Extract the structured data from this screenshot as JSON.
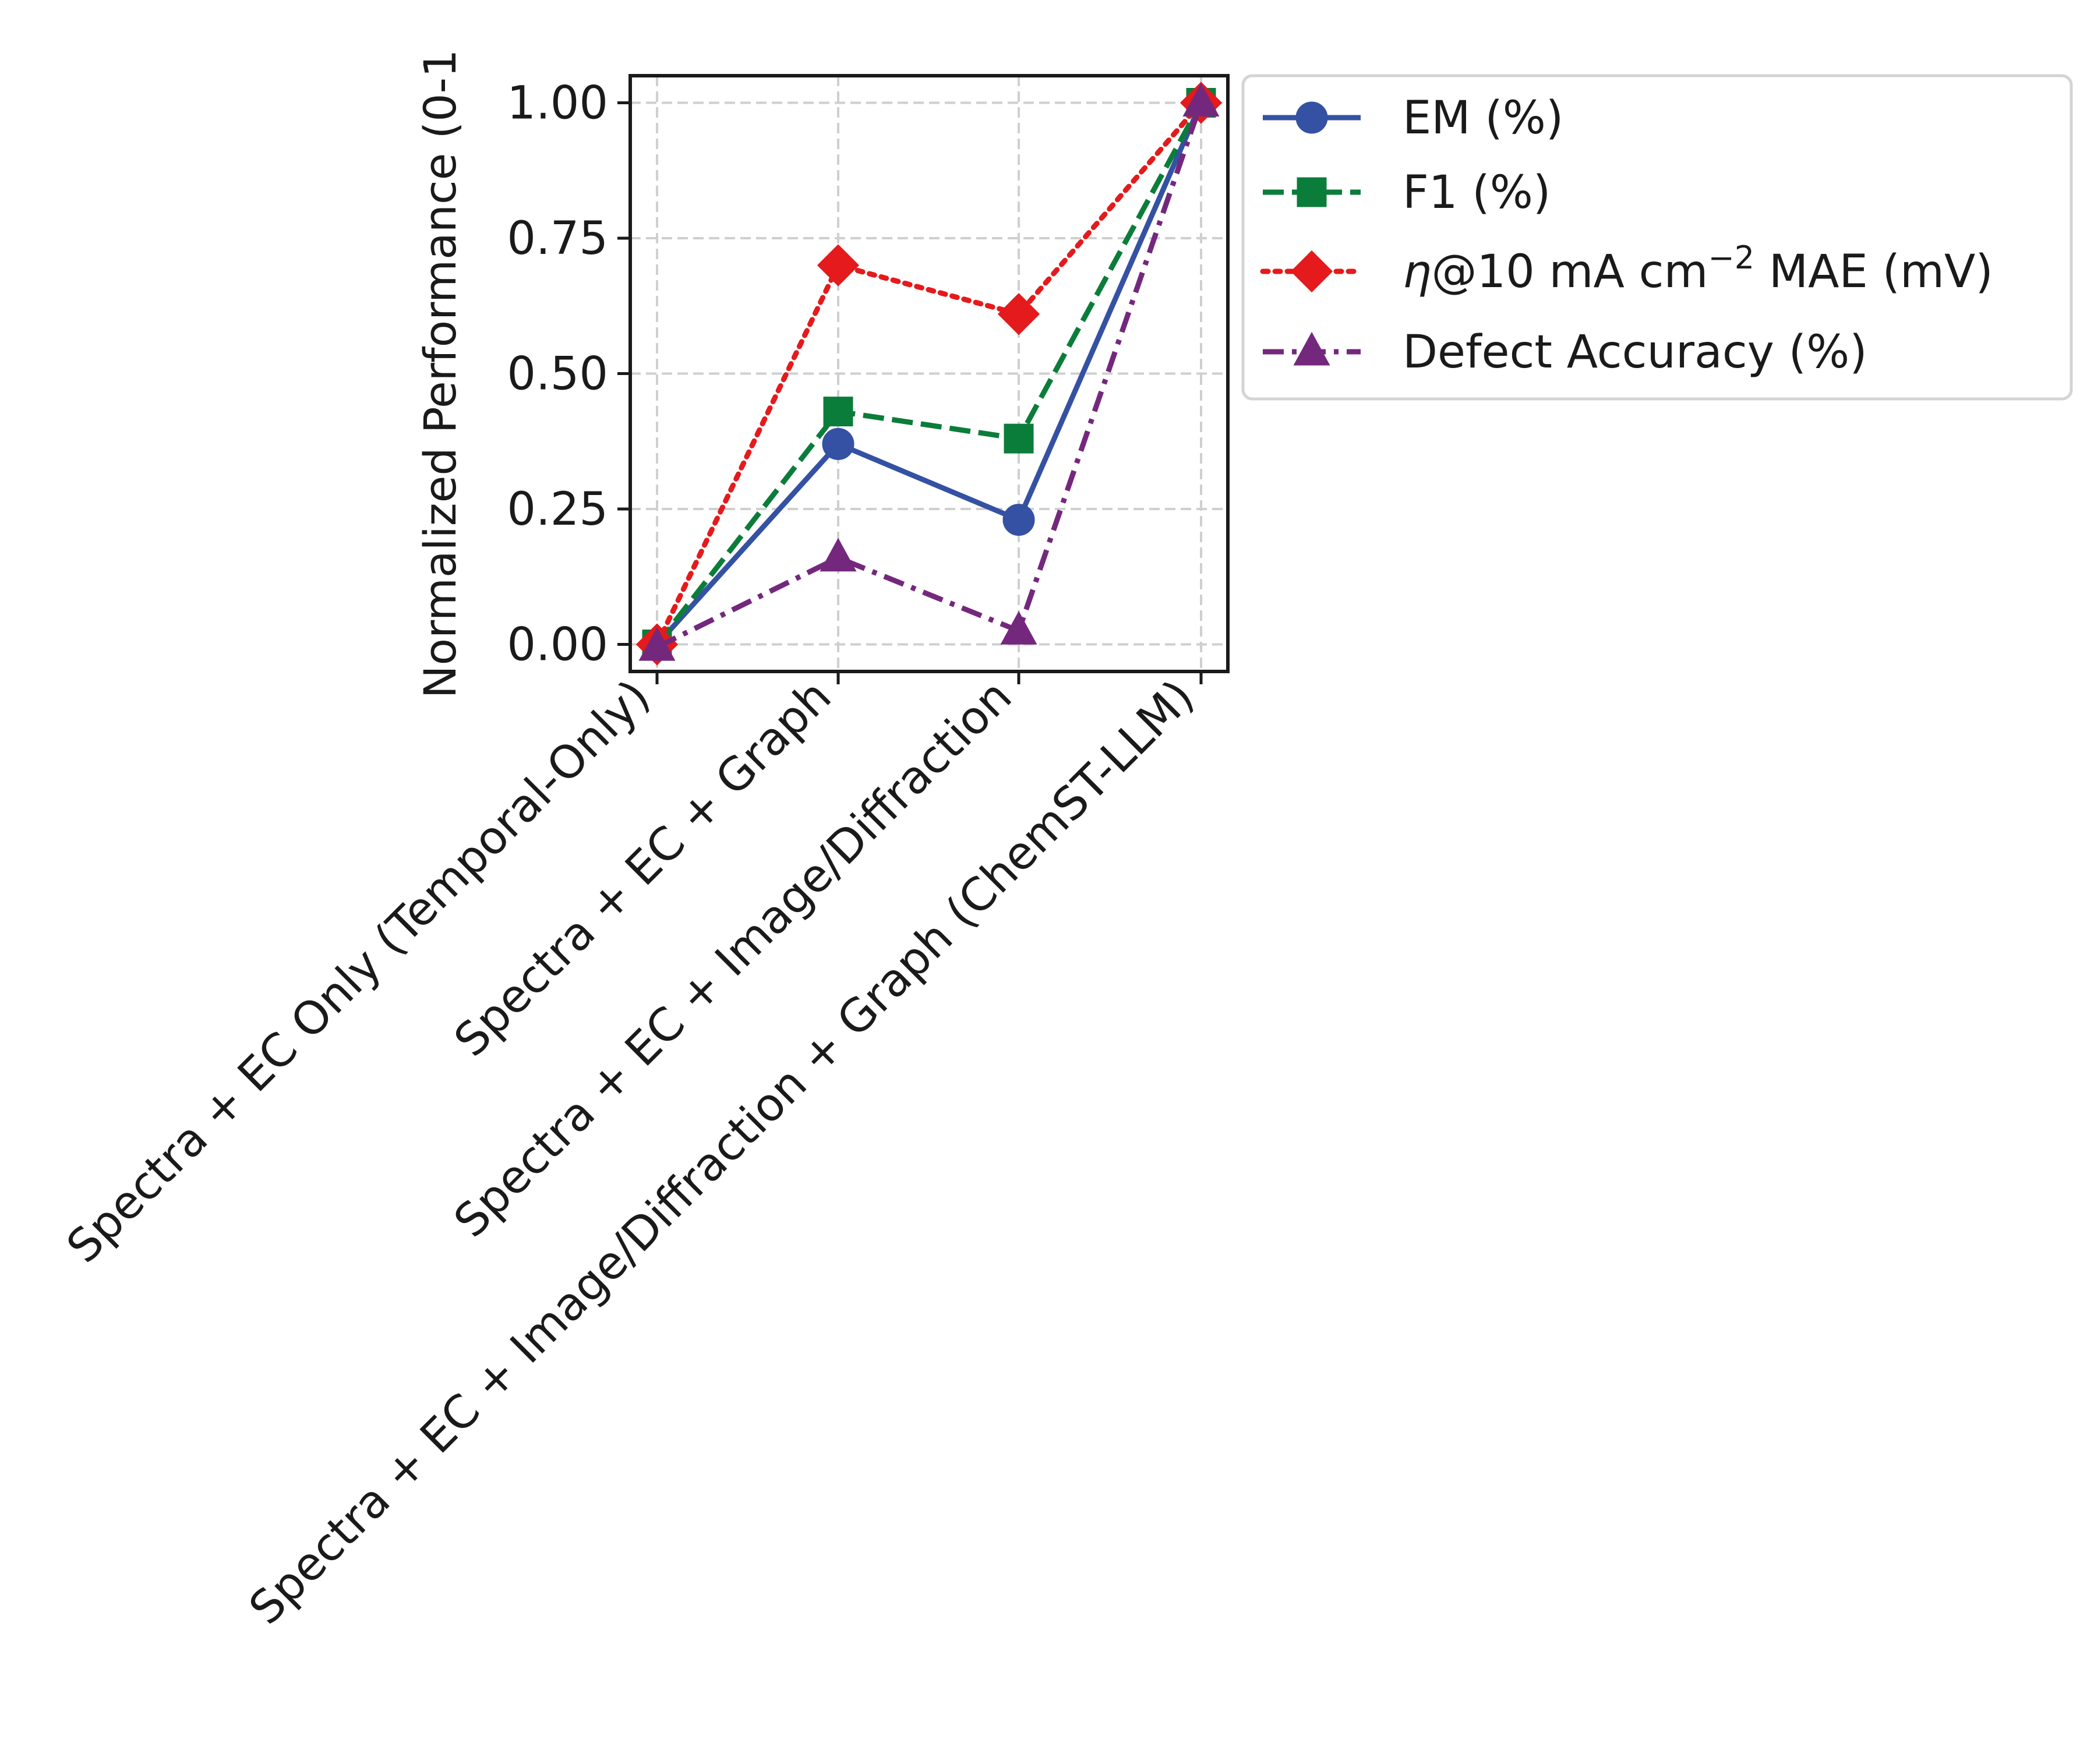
{
  "chart_data": {
    "type": "line",
    "title": "",
    "xlabel": "",
    "ylabel": "Normalized Performance (0-1",
    "categories": [
      "Spectra + EC Only (Temporal-Only)",
      "Spectra + EC + Graph",
      "Spectra + EC + Image/Diffraction",
      "Spectra + EC + Image/Diffraction + Graph (ChemST-LLM)"
    ],
    "yticks": [
      "0.00",
      "0.25",
      "0.50",
      "0.75",
      "1.00"
    ],
    "ylim": [
      -0.05,
      1.05
    ],
    "grid": true,
    "legend_position": "outside-right-top",
    "series": [
      {
        "name_prefix": "",
        "name": "EM (%)",
        "name_sup": "",
        "name_suffix": "",
        "color": "#3451a3",
        "linestyle": "solid",
        "marker": "circle",
        "values": [
          0.0,
          0.37,
          0.23,
          1.0
        ]
      },
      {
        "name_prefix": "",
        "name": "F1 (%)",
        "name_sup": "",
        "name_suffix": "",
        "color": "#0b7d3a",
        "linestyle": "dashed",
        "marker": "square",
        "values": [
          0.0,
          0.43,
          0.38,
          1.0
        ]
      },
      {
        "name_prefix": "η",
        "name": "@10 mA cm",
        "name_sup": "−2",
        "name_suffix": " MAE (mV)",
        "color": "#e41a1c",
        "linestyle": "dotted",
        "marker": "diamond",
        "values": [
          0.0,
          0.7,
          0.61,
          1.0
        ]
      },
      {
        "name_prefix": "",
        "name": "Defect Accuracy (%)",
        "name_sup": "",
        "name_suffix": "",
        "color": "#74287d",
        "linestyle": "dashdot",
        "marker": "triangle",
        "values": [
          -0.005,
          0.16,
          0.025,
          1.0
        ]
      }
    ]
  }
}
